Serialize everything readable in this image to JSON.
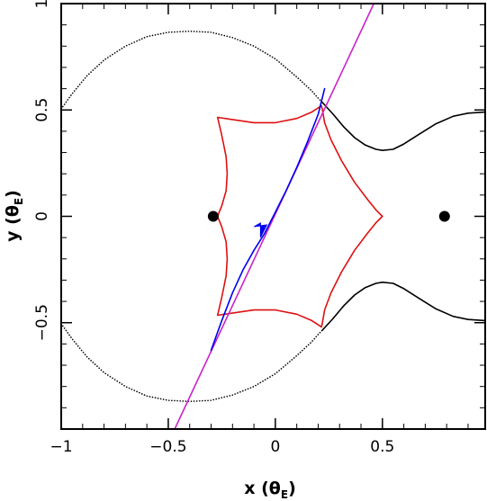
{
  "chart_data": {
    "type": "line",
    "xlim": [
      -1.0,
      0.98
    ],
    "ylim": [
      -1.0,
      1.0
    ],
    "grid": false,
    "x_ticks": [
      {
        "value": -1.0,
        "label": "−1"
      },
      {
        "value": -0.5,
        "label": "−0.5"
      },
      {
        "value": 0.0,
        "label": "0"
      },
      {
        "value": 0.5,
        "label": "0.5"
      }
    ],
    "y_ticks": [
      {
        "value": -0.5,
        "label": "−0.5"
      },
      {
        "value": 0.0,
        "label": "0"
      },
      {
        "value": 0.5,
        "label": "0.5"
      },
      {
        "value": 1.0,
        "label": "1"
      }
    ],
    "xlabel": {
      "main": "x (θ",
      "sub": "E",
      "close": ")"
    },
    "ylabel": {
      "main": "y (θ",
      "sub": "E",
      "close": ")"
    },
    "masses": [
      {
        "x": -0.29,
        "y": 0.0
      },
      {
        "x": 0.79,
        "y": 0.0
      }
    ],
    "series": [
      {
        "style": "dotted",
        "color": "#000000",
        "points": [
          [
            -1.0,
            0.505
          ],
          [
            -0.95,
            0.575
          ],
          [
            -0.88,
            0.66
          ],
          [
            -0.8,
            0.735
          ],
          [
            -0.7,
            0.8
          ],
          [
            -0.6,
            0.845
          ],
          [
            -0.5,
            0.865
          ],
          [
            -0.4,
            0.87
          ],
          [
            -0.3,
            0.865
          ],
          [
            -0.2,
            0.84
          ],
          [
            -0.1,
            0.8
          ],
          [
            0.0,
            0.74
          ],
          [
            0.1,
            0.655
          ],
          [
            0.17,
            0.59
          ],
          [
            0.2,
            0.555
          ],
          [
            0.22,
            0.535
          ]
        ]
      },
      {
        "style": "dotted",
        "color": "#000000",
        "points": [
          [
            -1.0,
            -0.505
          ],
          [
            -0.95,
            -0.575
          ],
          [
            -0.88,
            -0.66
          ],
          [
            -0.8,
            -0.735
          ],
          [
            -0.7,
            -0.8
          ],
          [
            -0.6,
            -0.845
          ],
          [
            -0.5,
            -0.865
          ],
          [
            -0.4,
            -0.87
          ],
          [
            -0.3,
            -0.865
          ],
          [
            -0.2,
            -0.84
          ],
          [
            -0.1,
            -0.8
          ],
          [
            0.0,
            -0.74
          ],
          [
            0.1,
            -0.655
          ],
          [
            0.17,
            -0.59
          ],
          [
            0.2,
            -0.555
          ],
          [
            0.22,
            -0.535
          ]
        ]
      },
      {
        "style": "solid",
        "color": "#000000",
        "points": [
          [
            0.22,
            0.535
          ],
          [
            0.27,
            0.48
          ],
          [
            0.32,
            0.42
          ],
          [
            0.37,
            0.37
          ],
          [
            0.42,
            0.335
          ],
          [
            0.47,
            0.315
          ],
          [
            0.5,
            0.31
          ],
          [
            0.55,
            0.315
          ],
          [
            0.6,
            0.34
          ],
          [
            0.67,
            0.385
          ],
          [
            0.75,
            0.435
          ],
          [
            0.83,
            0.47
          ],
          [
            0.9,
            0.485
          ],
          [
            0.98,
            0.49
          ]
        ]
      },
      {
        "style": "solid",
        "color": "#000000",
        "points": [
          [
            0.22,
            -0.535
          ],
          [
            0.27,
            -0.48
          ],
          [
            0.32,
            -0.42
          ],
          [
            0.37,
            -0.37
          ],
          [
            0.42,
            -0.335
          ],
          [
            0.47,
            -0.315
          ],
          [
            0.5,
            -0.31
          ],
          [
            0.55,
            -0.315
          ],
          [
            0.6,
            -0.34
          ],
          [
            0.67,
            -0.385
          ],
          [
            0.75,
            -0.435
          ],
          [
            0.83,
            -0.47
          ],
          [
            0.9,
            -0.485
          ],
          [
            0.98,
            -0.49
          ]
        ]
      },
      {
        "style": "solid",
        "color": "#dd1111",
        "points": [
          [
            -0.27,
            0.465
          ],
          [
            -0.2,
            0.455
          ],
          [
            -0.1,
            0.44
          ],
          [
            0.0,
            0.44
          ],
          [
            0.1,
            0.46
          ],
          [
            0.17,
            0.49
          ],
          [
            0.2,
            0.51
          ],
          [
            0.215,
            0.52
          ],
          [
            0.22,
            0.5
          ],
          [
            0.23,
            0.44
          ],
          [
            0.26,
            0.36
          ],
          [
            0.31,
            0.26
          ],
          [
            0.37,
            0.16
          ],
          [
            0.43,
            0.08
          ],
          [
            0.47,
            0.03
          ],
          [
            0.5,
            0.0
          ],
          [
            0.47,
            -0.03
          ],
          [
            0.43,
            -0.08
          ],
          [
            0.37,
            -0.16
          ],
          [
            0.31,
            -0.26
          ],
          [
            0.26,
            -0.36
          ],
          [
            0.23,
            -0.44
          ],
          [
            0.22,
            -0.5
          ],
          [
            0.215,
            -0.52
          ],
          [
            0.2,
            -0.51
          ],
          [
            0.17,
            -0.49
          ],
          [
            0.1,
            -0.46
          ],
          [
            0.0,
            -0.44
          ],
          [
            -0.1,
            -0.44
          ],
          [
            -0.2,
            -0.455
          ],
          [
            -0.27,
            -0.465
          ],
          [
            -0.25,
            -0.38
          ],
          [
            -0.23,
            -0.28
          ],
          [
            -0.225,
            -0.2
          ],
          [
            -0.23,
            -0.12
          ],
          [
            -0.25,
            -0.05
          ],
          [
            -0.27,
            0.0
          ],
          [
            -0.25,
            0.05
          ],
          [
            -0.23,
            0.12
          ],
          [
            -0.225,
            0.2
          ],
          [
            -0.23,
            0.28
          ],
          [
            -0.25,
            0.38
          ],
          [
            -0.27,
            0.465
          ]
        ]
      },
      {
        "style": "solid",
        "color": "#cc22cc",
        "points": [
          [
            -0.47,
            -1.0
          ],
          [
            0.46,
            1.0
          ]
        ]
      },
      {
        "style": "solid",
        "color": "#0000ee",
        "points": [
          [
            -0.3,
            -0.63
          ],
          [
            -0.25,
            -0.49
          ],
          [
            -0.2,
            -0.36
          ],
          [
            -0.15,
            -0.25
          ],
          [
            -0.1,
            -0.16
          ],
          [
            -0.05,
            -0.08
          ],
          [
            0.0,
            0.02
          ],
          [
            0.05,
            0.12
          ],
          [
            0.1,
            0.23
          ],
          [
            0.15,
            0.35
          ],
          [
            0.2,
            0.48
          ],
          [
            0.23,
            0.6
          ]
        ]
      }
    ],
    "arrow": {
      "x": -0.04,
      "y": -0.04,
      "color": "#0000ee"
    }
  }
}
